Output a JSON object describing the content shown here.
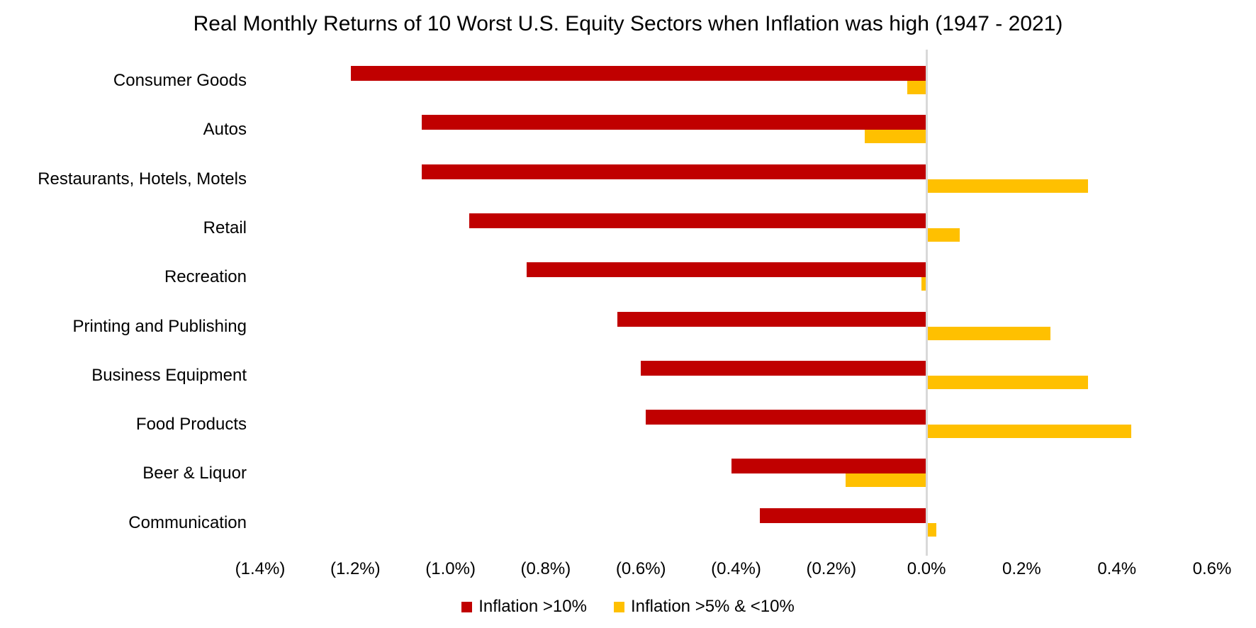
{
  "chart_data": {
    "type": "bar",
    "orientation": "horizontal",
    "title": "Real Monthly Returns of 10 Worst U.S. Equity Sectors when Inflation was high (1947 - 2021)",
    "categories": [
      "Consumer Goods",
      "Autos",
      "Restaurants, Hotels, Motels",
      "Retail",
      "Recreation",
      "Printing and Publishing",
      "Business Equipment",
      "Food Products",
      "Beer & Liquor",
      "Communication"
    ],
    "series": [
      {
        "name": "Inflation >10%",
        "color": "#C00000",
        "values": [
          -1.21,
          -1.06,
          -1.06,
          -0.96,
          -0.84,
          -0.65,
          -0.6,
          -0.59,
          -0.41,
          -0.35
        ]
      },
      {
        "name": "Inflation >5% & <10%",
        "color": "#FFC000",
        "values": [
          -0.04,
          -0.13,
          0.34,
          0.07,
          -0.01,
          0.26,
          0.34,
          0.43,
          -0.17,
          0.02
        ]
      }
    ],
    "x_axis": {
      "min": -1.4,
      "max": 0.6,
      "step": 0.2,
      "tick_labels": [
        "(1.4%)",
        "(1.2%)",
        "(1.0%)",
        "(0.8%)",
        "(0.6%)",
        "(0.4%)",
        "(0.2%)",
        "0.0%",
        "0.2%",
        "0.4%",
        "0.6%"
      ]
    },
    "value_unit": "%",
    "negative_label_format": "parentheses",
    "legend_position": "bottom",
    "grid": false,
    "zero_line_color": "#D9D9D9",
    "background_color": "#FFFFFF",
    "text_color": "#000000"
  }
}
